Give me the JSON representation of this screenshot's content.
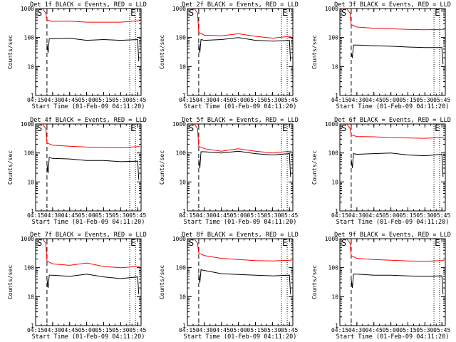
{
  "chart_data": [
    {
      "type": "line",
      "title": "Det 1f BLACK = Events, RED = LLD",
      "xlabel": "Start Time (01-Feb-09 04:11:20)",
      "ylabel": "Counts/sec",
      "xlim": [
        "04:15",
        "05:48"
      ],
      "ylim": [
        1,
        1000
      ],
      "yscale": "log",
      "x_ticks": [
        "04:15",
        "04:30",
        "04:45",
        "05:00",
        "05:15",
        "05:30",
        "05:45"
      ],
      "y_ticks": [
        "1",
        "10",
        "100",
        "1000"
      ],
      "markers": {
        "start": "S",
        "end": "E",
        "dashed_line_x": "04:25",
        "dotted_line_x": [
          "05:38",
          "05:43"
        ]
      },
      "series": [
        {
          "color": "#ff0000",
          "x": [
            "04:21",
            "04:24",
            "04:25",
            "04:30",
            "04:45",
            "05:00",
            "05:15",
            "05:30",
            "05:45",
            "05:47"
          ],
          "values": [
            1000,
            700,
            400,
            360,
            370,
            340,
            340,
            340,
            380,
            380
          ]
        },
        {
          "color": "#000000",
          "x": [
            "04:25",
            "04:26",
            "04:27",
            "04:30",
            "04:45",
            "05:00",
            "05:15",
            "05:30",
            "05:45",
            "05:46"
          ],
          "values": [
            60,
            30,
            90,
            90,
            95,
            80,
            85,
            80,
            85,
            15
          ]
        }
      ]
    },
    {
      "type": "line",
      "title": "Det 2f BLACK = Events, RED = LLD",
      "xlabel": "Start Time (01-Feb-09 04:11:20)",
      "ylabel": "Counts/sec",
      "xlim": [
        "04:15",
        "05:48"
      ],
      "ylim": [
        1,
        1000
      ],
      "yscale": "log",
      "x_ticks": [
        "04:15",
        "04:30",
        "04:45",
        "05:00",
        "05:15",
        "05:30",
        "05:45"
      ],
      "y_ticks": [
        "1",
        "10",
        "100",
        "1000"
      ],
      "markers": {
        "start": "S",
        "end": "E",
        "dashed_line_x": "04:25",
        "dotted_line_x": [
          "05:38",
          "05:43"
        ]
      },
      "series": [
        {
          "color": "#ff0000",
          "x": [
            "04:21",
            "04:24",
            "04:25",
            "04:30",
            "04:45",
            "05:00",
            "05:15",
            "05:30",
            "05:45",
            "05:47"
          ],
          "values": [
            1000,
            700,
            150,
            120,
            115,
            135,
            110,
            95,
            110,
            110
          ]
        },
        {
          "color": "#000000",
          "x": [
            "04:25",
            "04:26",
            "04:27",
            "04:30",
            "04:45",
            "05:00",
            "05:15",
            "05:30",
            "05:45",
            "05:46"
          ],
          "values": [
            60,
            30,
            85,
            80,
            85,
            100,
            80,
            75,
            80,
            15
          ]
        }
      ]
    },
    {
      "type": "line",
      "title": "Det 3f BLACK = Events, RED = LLD",
      "xlabel": "Start Time (01-Feb-09 04:11:20)",
      "ylabel": "Counts/sec",
      "xlim": [
        "04:15",
        "05:48"
      ],
      "ylim": [
        1,
        1000
      ],
      "yscale": "log",
      "x_ticks": [
        "04:15",
        "04:30",
        "04:45",
        "05:00",
        "05:15",
        "05:30",
        "05:45"
      ],
      "y_ticks": [
        "1",
        "10",
        "100",
        "1000"
      ],
      "markers": {
        "start": "S",
        "end": "E",
        "dashed_line_x": "04:25",
        "dotted_line_x": [
          "05:38",
          "05:43"
        ]
      },
      "series": [
        {
          "color": "#ff0000",
          "x": [
            "04:21",
            "04:24",
            "04:25",
            "04:30",
            "04:45",
            "05:00",
            "05:15",
            "05:30",
            "05:45",
            "05:47"
          ],
          "values": [
            1000,
            700,
            280,
            230,
            210,
            200,
            190,
            185,
            190,
            190
          ]
        },
        {
          "color": "#000000",
          "x": [
            "04:25",
            "04:26",
            "04:27",
            "04:30",
            "04:45",
            "05:00",
            "05:15",
            "05:30",
            "05:45",
            "05:46"
          ],
          "values": [
            30,
            20,
            55,
            55,
            52,
            50,
            47,
            45,
            45,
            12
          ]
        }
      ]
    },
    {
      "type": "line",
      "title": "Det 4f BLACK = Events, RED = LLD",
      "xlabel": "Start Time (01-Feb-09 04:11:20)",
      "ylabel": "Counts/sec",
      "xlim": [
        "04:15",
        "05:48"
      ],
      "ylim": [
        1,
        1000
      ],
      "yscale": "log",
      "x_ticks": [
        "04:15",
        "04:30",
        "04:45",
        "05:00",
        "05:15",
        "05:30",
        "05:45"
      ],
      "y_ticks": [
        "1",
        "10",
        "100",
        "1000"
      ],
      "markers": {
        "start": "S",
        "end": "E",
        "dashed_line_x": "04:25",
        "dotted_line_x": [
          "05:38",
          "05:43"
        ]
      },
      "series": [
        {
          "color": "#ff0000",
          "x": [
            "04:21",
            "04:24",
            "04:25",
            "04:30",
            "04:45",
            "05:00",
            "05:15",
            "05:30",
            "05:45",
            "05:47"
          ],
          "values": [
            1000,
            700,
            220,
            185,
            170,
            160,
            155,
            150,
            165,
            165
          ]
        },
        {
          "color": "#000000",
          "x": [
            "04:25",
            "04:26",
            "04:27",
            "04:30",
            "04:45",
            "05:00",
            "05:15",
            "05:30",
            "05:45",
            "05:46"
          ],
          "values": [
            40,
            20,
            70,
            65,
            62,
            55,
            55,
            50,
            52,
            12
          ]
        }
      ]
    },
    {
      "type": "line",
      "title": "Det 5f BLACK = Events, RED = LLD",
      "xlabel": "Start Time (01-Feb-09 04:11:20)",
      "ylabel": "Counts/sec",
      "xlim": [
        "04:15",
        "05:48"
      ],
      "ylim": [
        1,
        1000
      ],
      "yscale": "log",
      "x_ticks": [
        "04:15",
        "04:30",
        "04:45",
        "05:00",
        "05:15",
        "05:30",
        "05:45"
      ],
      "y_ticks": [
        "1",
        "10",
        "100",
        "1000"
      ],
      "markers": {
        "start": "S",
        "end": "E",
        "dashed_line_x": "04:25",
        "dotted_line_x": [
          "05:38",
          "05:43"
        ]
      },
      "series": [
        {
          "color": "#ff0000",
          "x": [
            "04:21",
            "04:24",
            "04:25",
            "04:30",
            "04:45",
            "05:00",
            "05:15",
            "05:30",
            "05:45",
            "05:47"
          ],
          "values": [
            1000,
            700,
            170,
            140,
            115,
            140,
            115,
            100,
            115,
            115
          ]
        },
        {
          "color": "#000000",
          "x": [
            "04:25",
            "04:26",
            "04:27",
            "04:30",
            "04:45",
            "05:00",
            "05:15",
            "05:30",
            "05:45",
            "05:46"
          ],
          "values": [
            60,
            30,
            110,
            110,
            100,
            115,
            95,
            85,
            95,
            15
          ]
        }
      ]
    },
    {
      "type": "line",
      "title": "Det 6f BLACK = Events, RED = LLD",
      "xlabel": "Start Time (01-Feb-09 04:11:20)",
      "ylabel": "Counts/sec",
      "xlim": [
        "04:15",
        "05:48"
      ],
      "ylim": [
        1,
        1000
      ],
      "yscale": "log",
      "x_ticks": [
        "04:15",
        "04:30",
        "04:45",
        "05:00",
        "05:15",
        "05:30",
        "05:45"
      ],
      "y_ticks": [
        "1",
        "10",
        "100",
        "1000"
      ],
      "markers": {
        "start": "S",
        "end": "E",
        "dashed_line_x": "04:25",
        "dotted_line_x": [
          "05:38",
          "05:43"
        ]
      },
      "series": [
        {
          "color": "#ff0000",
          "x": [
            "04:21",
            "04:24",
            "04:25",
            "04:30",
            "04:45",
            "05:00",
            "05:15",
            "05:30",
            "05:45",
            "05:47"
          ],
          "values": [
            1000,
            700,
            420,
            370,
            360,
            340,
            330,
            320,
            340,
            340
          ]
        },
        {
          "color": "#000000",
          "x": [
            "04:25",
            "04:26",
            "04:27",
            "04:30",
            "04:45",
            "05:00",
            "05:15",
            "05:30",
            "05:45",
            "05:46"
          ],
          "values": [
            60,
            30,
            95,
            90,
            95,
            100,
            85,
            80,
            90,
            15
          ]
        }
      ]
    },
    {
      "type": "line",
      "title": "Det 7f BLACK = Events, RED = LLD",
      "xlabel": "Start Time (01-Feb-09 04:11:20)",
      "ylabel": "Counts/sec",
      "xlim": [
        "04:15",
        "05:48"
      ],
      "ylim": [
        1,
        1000
      ],
      "yscale": "log",
      "x_ticks": [
        "04:15",
        "04:30",
        "04:45",
        "05:00",
        "05:15",
        "05:30",
        "05:45"
      ],
      "y_ticks": [
        "1",
        "10",
        "100",
        "1000"
      ],
      "markers": {
        "start": "S",
        "end": "E",
        "dashed_line_x": "04:25",
        "dotted_line_x": [
          "05:38",
          "05:43"
        ]
      },
      "series": [
        {
          "color": "#ff0000",
          "x": [
            "04:21",
            "04:24",
            "04:25",
            "04:30",
            "04:45",
            "05:00",
            "05:15",
            "05:30",
            "05:45",
            "05:47"
          ],
          "values": [
            1000,
            700,
            170,
            135,
            120,
            145,
            110,
            100,
            110,
            110
          ]
        },
        {
          "color": "#000000",
          "x": [
            "04:25",
            "04:26",
            "04:27",
            "04:30",
            "04:45",
            "05:00",
            "05:15",
            "05:30",
            "05:45",
            "05:46"
          ],
          "values": [
            40,
            20,
            55,
            55,
            50,
            60,
            48,
            42,
            48,
            12
          ]
        }
      ]
    },
    {
      "type": "line",
      "title": "Det 8f BLACK = Events, RED = LLD",
      "xlabel": "Start Time (01-Feb-09 04:11:20)",
      "ylabel": "Counts/sec",
      "xlim": [
        "04:15",
        "05:48"
      ],
      "ylim": [
        1,
        1000
      ],
      "yscale": "log",
      "x_ticks": [
        "04:15",
        "04:30",
        "04:45",
        "05:00",
        "05:15",
        "05:30",
        "05:45"
      ],
      "y_ticks": [
        "1",
        "10",
        "100",
        "1000"
      ],
      "markers": {
        "start": "S",
        "end": "E",
        "dashed_line_x": "04:25",
        "dotted_line_x": [
          "05:38",
          "05:43"
        ]
      },
      "series": [
        {
          "color": "#ff0000",
          "x": [
            "04:21",
            "04:24",
            "04:25",
            "04:30",
            "04:45",
            "05:00",
            "05:15",
            "05:30",
            "05:45",
            "05:47"
          ],
          "values": [
            1000,
            700,
            320,
            260,
            210,
            190,
            175,
            170,
            180,
            180
          ]
        },
        {
          "color": "#000000",
          "x": [
            "04:25",
            "04:26",
            "04:27",
            "04:30",
            "04:45",
            "05:00",
            "05:15",
            "05:30",
            "05:45",
            "05:46"
          ],
          "values": [
            60,
            30,
            85,
            80,
            62,
            58,
            55,
            52,
            55,
            12
          ]
        }
      ]
    },
    {
      "type": "line",
      "title": "Det 9f BLACK = Events, RED = LLD",
      "xlabel": "Start Time (01-Feb-09 04:11:20)",
      "ylabel": "Counts/sec",
      "xlim": [
        "04:15",
        "05:48"
      ],
      "ylim": [
        1,
        1000
      ],
      "yscale": "log",
      "x_ticks": [
        "04:15",
        "04:30",
        "04:45",
        "05:00",
        "05:15",
        "05:30",
        "05:45"
      ],
      "y_ticks": [
        "1",
        "10",
        "100",
        "1000"
      ],
      "markers": {
        "start": "S",
        "end": "E",
        "dashed_line_x": "04:25",
        "dotted_line_x": [
          "05:38",
          "05:43"
        ]
      },
      "series": [
        {
          "color": "#ff0000",
          "x": [
            "04:21",
            "04:24",
            "04:25",
            "04:30",
            "04:45",
            "05:00",
            "05:15",
            "05:30",
            "05:45",
            "05:47"
          ],
          "values": [
            1000,
            700,
            260,
            210,
            190,
            180,
            170,
            165,
            175,
            175
          ]
        },
        {
          "color": "#000000",
          "x": [
            "04:25",
            "04:26",
            "04:27",
            "04:30",
            "04:45",
            "05:00",
            "05:15",
            "05:30",
            "05:45",
            "05:46"
          ],
          "values": [
            40,
            20,
            60,
            60,
            55,
            55,
            52,
            50,
            52,
            12
          ]
        }
      ]
    }
  ]
}
